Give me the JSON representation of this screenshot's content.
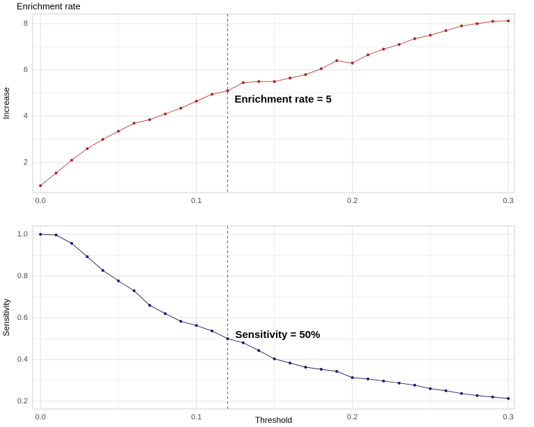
{
  "chart_data": [
    {
      "type": "line",
      "title": "Enrichment rate",
      "y_label": "Increase",
      "x": [
        0.0,
        0.01,
        0.02,
        0.03,
        0.04,
        0.05,
        0.06,
        0.07,
        0.08,
        0.09,
        0.1,
        0.11,
        0.12,
        0.13,
        0.14,
        0.15,
        0.16,
        0.17,
        0.18,
        0.19,
        0.2,
        0.21,
        0.22,
        0.23,
        0.24,
        0.25,
        0.26,
        0.27,
        0.28,
        0.29,
        0.3
      ],
      "values": [
        1.0,
        1.55,
        2.1,
        2.6,
        3.0,
        3.35,
        3.7,
        3.85,
        4.1,
        4.35,
        4.65,
        4.95,
        5.1,
        5.45,
        5.5,
        5.5,
        5.65,
        5.8,
        6.05,
        6.4,
        6.3,
        6.65,
        6.9,
        7.1,
        7.35,
        7.5,
        7.7,
        7.9,
        8.0,
        8.1,
        8.12
      ],
      "color": "#b22222",
      "line_color": "#c0504d",
      "xlim": [
        -0.005,
        0.304
      ],
      "ylim": [
        0.7,
        8.42
      ],
      "xticks": [
        {
          "value": 0,
          "label": "0.0"
        },
        0.1,
        0.2,
        0.3
      ],
      "yticks": [
        2,
        4,
        6,
        8
      ],
      "grid": true,
      "vline": 0.12,
      "vline_color": "#556b2f",
      "annotation": "Enrichment rate = 5"
    },
    {
      "type": "line",
      "x_label": "Threshold",
      "y_label": "Sensitivity",
      "x": [
        0.0,
        0.01,
        0.02,
        0.03,
        0.04,
        0.05,
        0.06,
        0.07,
        0.08,
        0.09,
        0.1,
        0.11,
        0.12,
        0.13,
        0.14,
        0.15,
        0.16,
        0.17,
        0.18,
        0.19,
        0.2,
        0.21,
        0.22,
        0.23,
        0.24,
        0.25,
        0.26,
        0.27,
        0.28,
        0.29,
        0.3
      ],
      "values": [
        1.0,
        0.997,
        0.957,
        0.893,
        0.827,
        0.777,
        0.73,
        0.66,
        0.62,
        0.583,
        0.563,
        0.537,
        0.5,
        0.48,
        0.443,
        0.403,
        0.383,
        0.363,
        0.353,
        0.343,
        0.313,
        0.307,
        0.297,
        0.287,
        0.277,
        0.26,
        0.25,
        0.237,
        0.227,
        0.22,
        0.213
      ],
      "color": "#1a1a80",
      "line_color": "#2b2b6b",
      "xlim": [
        -0.005,
        0.304
      ],
      "ylim": [
        0.163,
        1.04
      ],
      "xticks": [
        {
          "value": 0,
          "label": "0.0"
        },
        0.1,
        0.2,
        0.3
      ],
      "yticks": [
        0.2,
        0.4,
        0.6,
        0.8,
        {
          "value": 1,
          "label": "1.0"
        }
      ],
      "grid": true,
      "vline": 0.12,
      "vline_color": "#556b2f",
      "annotation": "Sensitivity = 50%"
    }
  ]
}
